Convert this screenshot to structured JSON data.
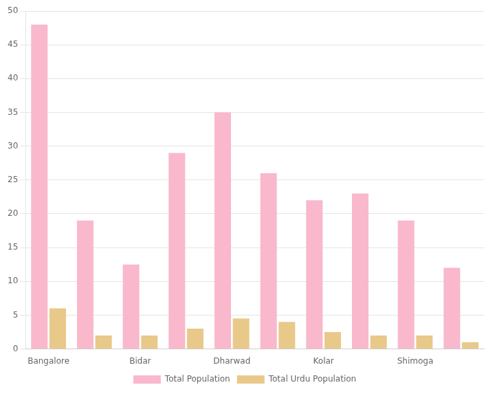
{
  "chart_data": {
    "type": "bar",
    "categories": [
      "Bangalore",
      null,
      "Bidar",
      null,
      "Dharwad",
      null,
      "Kolar",
      null,
      "Shimoga",
      null
    ],
    "series": [
      {
        "name": "Total Population",
        "color": "#F9B8CC",
        "values": [
          48,
          19,
          12.5,
          29,
          35,
          26,
          22,
          23,
          19,
          12
        ]
      },
      {
        "name": "Total Urdu Population",
        "color": "#E8C98A",
        "values": [
          6,
          2,
          2,
          3,
          4.5,
          4,
          2.5,
          2,
          2,
          1
        ]
      }
    ],
    "ylim": [
      0,
      50
    ],
    "yticks": [
      0,
      5,
      10,
      15,
      20,
      25,
      30,
      35,
      40,
      45,
      50
    ],
    "grid": true,
    "legend": "bottom"
  }
}
